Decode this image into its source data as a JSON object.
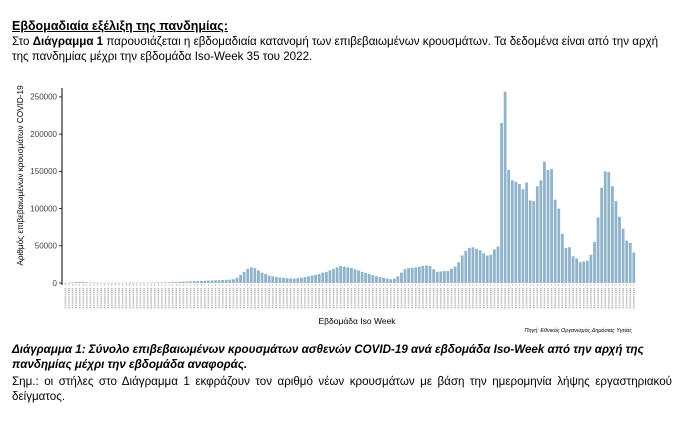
{
  "section": {
    "heading": "Εβδομαδιαία εξέλιξη της πανδημίας:",
    "intro_before": "Στο ",
    "intro_bold": "Διάγραμμα 1",
    "intro_after": " παρουσιάζεται η εβδομαδιαία κατανομή των επιβεβαιωμένων κρουσμάτων. Τα δεδομένα είναι από την αρχή της πανδημίας μέχρι την εβδομάδα Iso-Week 35 του 2022."
  },
  "chart_data": {
    "type": "bar",
    "xlabel": "Εβδομάδα Iso Week",
    "ylabel": "Αριθμός επιβεβαιωμένων κρουσμάτων COVID-19",
    "source": "Πηγή: Εθνικός Οργανισμός Δημόσιας Υγείας",
    "ylim": [
      0,
      262000
    ],
    "yticks": [
      0,
      50000,
      100000,
      150000,
      200000,
      250000
    ],
    "ytick_labels": [
      "0",
      "50000",
      "100000",
      "150000",
      "200000",
      "250000"
    ],
    "grid": false,
    "bar_color": "#8fb3cb",
    "values": [
      100,
      400,
      800,
      1200,
      1500,
      1300,
      1000,
      700,
      500,
      400,
      300,
      300,
      300,
      300,
      300,
      300,
      300,
      300,
      300,
      300,
      300,
      400,
      400,
      500,
      500,
      600,
      700,
      800,
      900,
      1000,
      1200,
      1400,
      1600,
      1800,
      2000,
      2200,
      2400,
      2600,
      2800,
      3000,
      3200,
      3400,
      3600,
      3800,
      4000,
      4200,
      4500,
      5000,
      7000,
      11000,
      15000,
      19000,
      21000,
      20000,
      17000,
      14000,
      12000,
      10000,
      9000,
      8000,
      7500,
      7000,
      6500,
      6000,
      6000,
      6500,
      7000,
      8000,
      9000,
      10000,
      11000,
      12000,
      14000,
      15000,
      17000,
      19000,
      21000,
      23000,
      22000,
      21000,
      20000,
      18500,
      17000,
      15000,
      13500,
      12000,
      10500,
      9000,
      8000,
      7000,
      6000,
      5000,
      6000,
      9000,
      14000,
      18500,
      20000,
      20500,
      21000,
      22000,
      23000,
      23500,
      23000,
      18500,
      15000,
      15500,
      16000,
      16000,
      19000,
      22000,
      28000,
      37000,
      43000,
      47000,
      48000,
      46000,
      44000,
      40000,
      37000,
      38000,
      45000,
      49000,
      215000,
      257000,
      152000,
      138000,
      136000,
      133000,
      126000,
      135000,
      111000,
      110000,
      130000,
      138000,
      163000,
      152000,
      153000,
      112000,
      100000,
      66000,
      47000,
      48000,
      36000,
      33000,
      28000,
      29000,
      30000,
      38000,
      55000,
      88000,
      128000,
      150000,
      149000,
      130000,
      110000,
      89000,
      73000,
      57000,
      54000,
      41000
    ]
  },
  "figure": {
    "caption": "Διάγραμμα 1: Σύνολο επιβεβαιωμένων κρουσμάτων ασθενών COVID-19 ανά εβδομάδα Iso-Week από την αρχή της πανδημίας μέχρι την εβδομάδα αναφοράς.",
    "note": "Σημ.: οι στήλες στο Διάγραμμα 1 εκφράζουν τον αριθμό νέων κρουσμάτων με βάση την ημερομηνία λήψης εργαστηριακού δείγματος."
  }
}
